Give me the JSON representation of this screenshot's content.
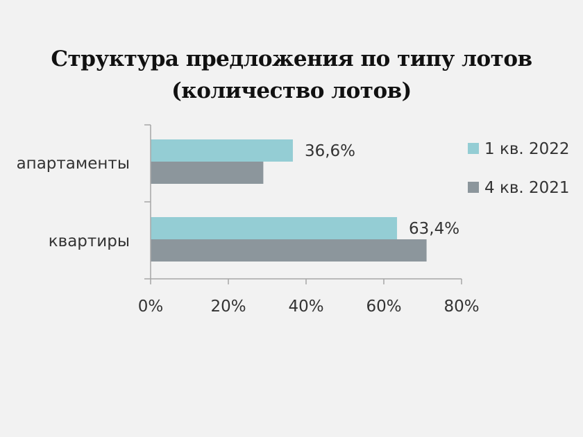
{
  "chart_data": {
    "type": "bar",
    "orientation": "horizontal",
    "title_lines": [
      "Структура предложения по типу лотов",
      "(количество лотов)"
    ],
    "categories": [
      "апартаменты",
      "квартиры"
    ],
    "series": [
      {
        "name": "1 кв. 2022",
        "color": "#94cdd4",
        "values": [
          36.6,
          63.4
        ],
        "labels": [
          "36,6%",
          "63,4%"
        ]
      },
      {
        "name": "4 кв. 2021",
        "color": "#8c969c",
        "values": [
          29,
          71
        ],
        "labels": [
          "",
          ""
        ]
      }
    ],
    "x_ticks": [
      0,
      20,
      40,
      60,
      80
    ],
    "x_tick_labels": [
      "0%",
      "20%",
      "40%",
      "60%",
      "80%"
    ],
    "xlim": [
      0,
      80
    ],
    "grid": false,
    "legend_position": "right"
  }
}
